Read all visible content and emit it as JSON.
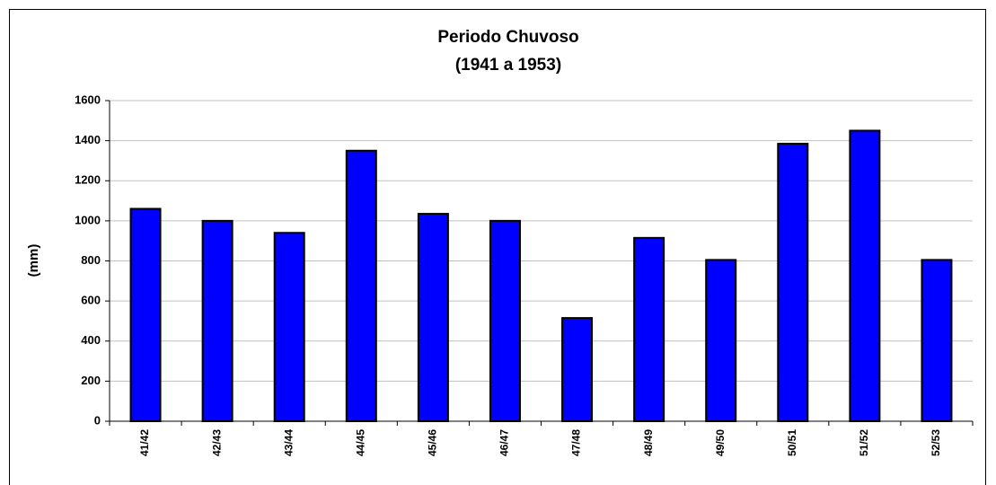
{
  "chart_data": {
    "type": "bar",
    "title": "Periodo Chuvoso",
    "subtitle": "(1941 a 1953)",
    "ylabel": "(mm)",
    "categories": [
      "41/42",
      "42/43",
      "43/44",
      "44/45",
      "45/46",
      "46/47",
      "47/48",
      "48/49",
      "49/50",
      "50/51",
      "51/52",
      "52/53"
    ],
    "values": [
      1060,
      1000,
      940,
      1350,
      1035,
      1000,
      515,
      915,
      805,
      1385,
      1450,
      805
    ],
    "color": "#0000ff",
    "ylim": [
      0,
      1600
    ],
    "yticks": [
      0,
      200,
      400,
      600,
      800,
      1000,
      1200,
      1400,
      1600
    ],
    "grid": true
  }
}
